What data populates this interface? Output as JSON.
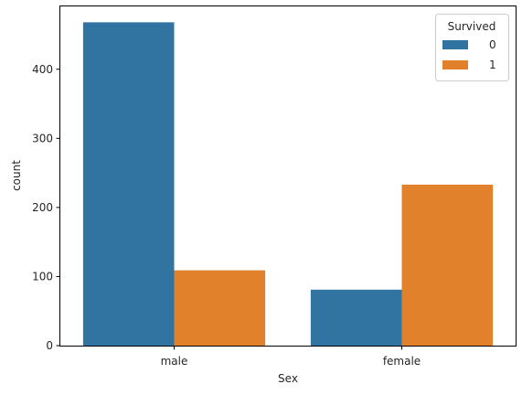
{
  "chart_data": {
    "type": "bar",
    "categories": [
      "male",
      "female"
    ],
    "series": [
      {
        "name": "0",
        "values": [
          468,
          81
        ],
        "color": "#3274a1"
      },
      {
        "name": "1",
        "values": [
          109,
          233
        ],
        "color": "#e1812c"
      }
    ],
    "xlabel": "Sex",
    "ylabel": "count",
    "ylim": [
      0,
      491
    ],
    "yticks": [
      0,
      100,
      200,
      300,
      400
    ],
    "grid": false,
    "legend": {
      "title": "Survived",
      "placement": "top-right"
    }
  }
}
